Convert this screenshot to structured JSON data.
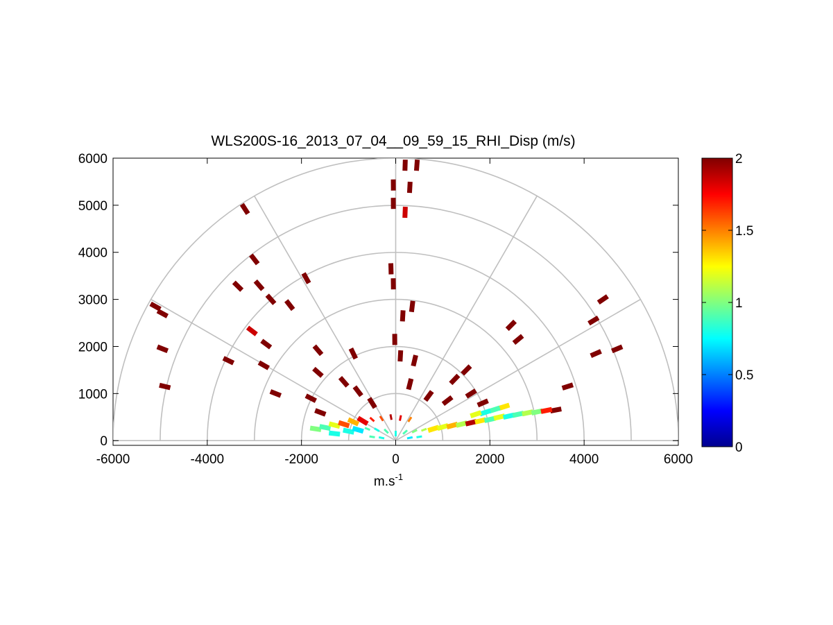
{
  "chart_data": {
    "type": "heatmap",
    "title": "WLS200S-16_2013_07_04__09_59_15_RHI_Disp (m/s)",
    "xlabel_base": "m.s",
    "xlabel_exp": "-1",
    "xlim": [
      -6000,
      6000
    ],
    "ylim": [
      -100,
      6000
    ],
    "x_ticks": [
      -6000,
      -4000,
      -2000,
      0,
      2000,
      4000,
      6000
    ],
    "x_tick_labels": [
      "-6000",
      "-4000",
      "-2000",
      "0",
      "2000",
      "4000",
      "6000"
    ],
    "y_ticks": [
      0,
      1000,
      2000,
      3000,
      4000,
      5000,
      6000
    ],
    "y_tick_labels": [
      "0",
      "1000",
      "2000",
      "3000",
      "4000",
      "5000",
      "6000"
    ],
    "polar_grid": {
      "radii": [
        1000,
        2000,
        3000,
        4000,
        5000,
        6000
      ],
      "spoke_angles_deg": [
        0,
        30,
        60,
        90,
        120,
        150,
        180
      ]
    },
    "colorbar": {
      "colormap": "jet",
      "range": [
        0,
        2
      ],
      "ticks": [
        0,
        0.5,
        1,
        1.5,
        2
      ],
      "tick_labels": [
        "0",
        "0.5",
        "1",
        "1.5",
        "2"
      ],
      "stops": [
        "#00008f",
        "#0000ff",
        "#0080ff",
        "#00ffff",
        "#80ff80",
        "#ffff00",
        "#ff8000",
        "#ff0000",
        "#800000"
      ]
    },
    "grid": true,
    "cells": [
      {
        "x": 200,
        "y": 5850,
        "v": 2
      },
      {
        "x": 450,
        "y": 5850,
        "v": 2
      },
      {
        "x": -50,
        "y": 5430,
        "v": 2
      },
      {
        "x": 300,
        "y": 5380,
        "v": 2
      },
      {
        "x": -50,
        "y": 5040,
        "v": 2
      },
      {
        "x": 200,
        "y": 4850,
        "v": 1.85
      },
      {
        "x": -3200,
        "y": 4920,
        "v": 2
      },
      {
        "x": -3000,
        "y": 3850,
        "v": 2
      },
      {
        "x": -3350,
        "y": 3280,
        "v": 2
      },
      {
        "x": -2900,
        "y": 3300,
        "v": 2
      },
      {
        "x": -2650,
        "y": 3000,
        "v": 2
      },
      {
        "x": -2250,
        "y": 2880,
        "v": 2
      },
      {
        "x": -1900,
        "y": 3450,
        "v": 2
      },
      {
        "x": -5100,
        "y": 2850,
        "v": 2
      },
      {
        "x": -4950,
        "y": 2700,
        "v": 2
      },
      {
        "x": -4950,
        "y": 1950,
        "v": 2
      },
      {
        "x": -4900,
        "y": 1150,
        "v": 2
      },
      {
        "x": -3050,
        "y": 2330,
        "v": 1.85
      },
      {
        "x": -2750,
        "y": 2050,
        "v": 2
      },
      {
        "x": -3550,
        "y": 1700,
        "v": 2
      },
      {
        "x": -2800,
        "y": 1600,
        "v": 2
      },
      {
        "x": -2550,
        "y": 1000,
        "v": 2
      },
      {
        "x": -1650,
        "y": 1920,
        "v": 2
      },
      {
        "x": -1650,
        "y": 1450,
        "v": 2
      },
      {
        "x": -1800,
        "y": 900,
        "v": 2
      },
      {
        "x": -1600,
        "y": 600,
        "v": 2
      },
      {
        "x": -900,
        "y": 1850,
        "v": 2
      },
      {
        "x": -1100,
        "y": 1250,
        "v": 2
      },
      {
        "x": -800,
        "y": 1050,
        "v": 2
      },
      {
        "x": -500,
        "y": 800,
        "v": 2
      },
      {
        "x": -100,
        "y": 3650,
        "v": 2
      },
      {
        "x": -50,
        "y": 3330,
        "v": 2
      },
      {
        "x": 350,
        "y": 2850,
        "v": 2
      },
      {
        "x": 150,
        "y": 2650,
        "v": 2
      },
      {
        "x": -20,
        "y": 2150,
        "v": 2
      },
      {
        "x": 100,
        "y": 1800,
        "v": 2
      },
      {
        "x": 400,
        "y": 1700,
        "v": 2
      },
      {
        "x": 300,
        "y": 1200,
        "v": 2
      },
      {
        "x": 700,
        "y": 950,
        "v": 2
      },
      {
        "x": 1100,
        "y": 850,
        "v": 2
      },
      {
        "x": 1250,
        "y": 1300,
        "v": 2
      },
      {
        "x": 1500,
        "y": 1500,
        "v": 2
      },
      {
        "x": 1600,
        "y": 1000,
        "v": 2
      },
      {
        "x": 1850,
        "y": 800,
        "v": 2
      },
      {
        "x": 2450,
        "y": 2450,
        "v": 2
      },
      {
        "x": 2600,
        "y": 2150,
        "v": 2
      },
      {
        "x": 3650,
        "y": 1150,
        "v": 2
      },
      {
        "x": 3400,
        "y": 650,
        "v": 2
      },
      {
        "x": 4400,
        "y": 3000,
        "v": 2
      },
      {
        "x": 4200,
        "y": 2550,
        "v": 2
      },
      {
        "x": 4250,
        "y": 1850,
        "v": 2
      },
      {
        "x": 4700,
        "y": 1950,
        "v": 2
      },
      {
        "x": -1700,
        "y": 250,
        "v": 1.0
      },
      {
        "x": -1500,
        "y": 280,
        "v": 0.9
      },
      {
        "x": -1300,
        "y": 330,
        "v": 1.2
      },
      {
        "x": -1100,
        "y": 350,
        "v": 1.6
      },
      {
        "x": -900,
        "y": 400,
        "v": 1.4
      },
      {
        "x": -700,
        "y": 420,
        "v": 1.8
      },
      {
        "x": -500,
        "y": 450,
        "v": 1.7
      },
      {
        "x": -300,
        "y": 470,
        "v": 1.6
      },
      {
        "x": -100,
        "y": 500,
        "v": 1.9
      },
      {
        "x": 100,
        "y": 480,
        "v": 1.8
      },
      {
        "x": 300,
        "y": 450,
        "v": 1.5
      },
      {
        "x": -1300,
        "y": 150,
        "v": 0.8
      },
      {
        "x": -1000,
        "y": 200,
        "v": 0.8
      },
      {
        "x": -800,
        "y": 230,
        "v": 0.7
      },
      {
        "x": -600,
        "y": 250,
        "v": 0.9
      },
      {
        "x": -400,
        "y": 230,
        "v": 0.8
      },
      {
        "x": -200,
        "y": 200,
        "v": 0.9
      },
      {
        "x": 0,
        "y": 150,
        "v": 0.8
      },
      {
        "x": 200,
        "y": 180,
        "v": 0.9
      },
      {
        "x": 400,
        "y": 200,
        "v": 1.0
      },
      {
        "x": 600,
        "y": 230,
        "v": 1.1
      },
      {
        "x": 800,
        "y": 250,
        "v": 1.3
      },
      {
        "x": 1000,
        "y": 290,
        "v": 1.2
      },
      {
        "x": 1200,
        "y": 320,
        "v": 1.4
      },
      {
        "x": 1400,
        "y": 350,
        "v": 1.1
      },
      {
        "x": 1600,
        "y": 380,
        "v": 1.9
      },
      {
        "x": 1800,
        "y": 420,
        "v": 1.3
      },
      {
        "x": 2000,
        "y": 450,
        "v": 0.9
      },
      {
        "x": 2200,
        "y": 500,
        "v": 1.2
      },
      {
        "x": 2400,
        "y": 520,
        "v": 0.8
      },
      {
        "x": 2600,
        "y": 560,
        "v": 0.9
      },
      {
        "x": 2800,
        "y": 590,
        "v": 1.1
      },
      {
        "x": 3000,
        "y": 610,
        "v": 1.0
      },
      {
        "x": 3200,
        "y": 640,
        "v": 1.7
      },
      {
        "x": 2300,
        "y": 720,
        "v": 1.3
      },
      {
        "x": 2100,
        "y": 660,
        "v": 0.9
      },
      {
        "x": 1900,
        "y": 600,
        "v": 0.8
      },
      {
        "x": 1700,
        "y": 560,
        "v": 1.2
      },
      {
        "x": 500,
        "y": 80,
        "v": 0.8
      },
      {
        "x": -500,
        "y": 80,
        "v": 0.9
      },
      {
        "x": 300,
        "y": 60,
        "v": 0.7
      },
      {
        "x": -300,
        "y": 60,
        "v": 0.8
      }
    ]
  }
}
